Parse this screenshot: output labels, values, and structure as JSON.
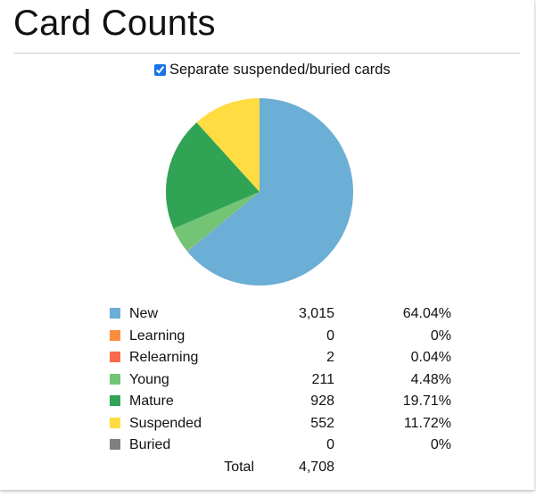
{
  "header": {
    "title": "Card Counts"
  },
  "toggle": {
    "label": "Separate suspended/buried cards",
    "checked": true
  },
  "colors": {
    "new": "#6baed6",
    "learning": "#fd8d3c",
    "relearning": "#fb6a4a",
    "young": "#74c476",
    "mature": "#31a354",
    "suspended": "#ffdc41",
    "buried": "#808080"
  },
  "chart_data": {
    "type": "pie",
    "title": "",
    "categories": [
      "New",
      "Learning",
      "Relearning",
      "Young",
      "Mature",
      "Suspended",
      "Buried"
    ],
    "values": [
      3015,
      0,
      2,
      211,
      928,
      552,
      0
    ],
    "colors": [
      "#6baed6",
      "#fd8d3c",
      "#fb6a4a",
      "#74c476",
      "#31a354",
      "#ffdc41",
      "#808080"
    ],
    "legend": "bottom"
  },
  "legend": {
    "rows": [
      {
        "label": "New",
        "count": "3,015",
        "percent": "64.04%"
      },
      {
        "label": "Learning",
        "count": "0",
        "percent": "0%"
      },
      {
        "label": "Relearning",
        "count": "2",
        "percent": "0.04%"
      },
      {
        "label": "Young",
        "count": "211",
        "percent": "4.48%"
      },
      {
        "label": "Mature",
        "count": "928",
        "percent": "19.71%"
      },
      {
        "label": "Suspended",
        "count": "552",
        "percent": "11.72%"
      },
      {
        "label": "Buried",
        "count": "0",
        "percent": "0%"
      }
    ],
    "total_label": "Total",
    "total_count": "4,708"
  }
}
